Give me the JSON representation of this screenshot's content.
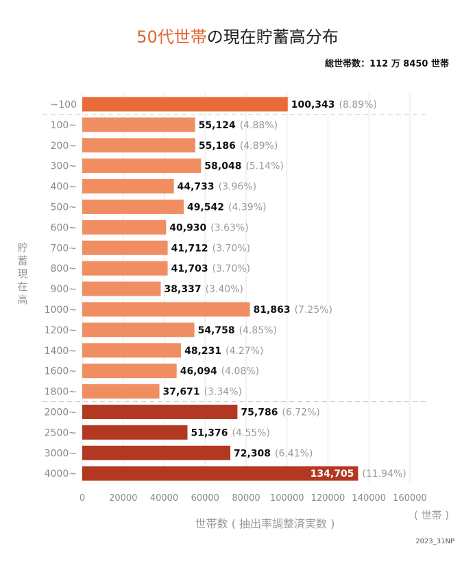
{
  "title": {
    "accent": "50代世帯",
    "rest": "の現在貯蓄高分布"
  },
  "total_households": "総世帯数：112 万 8450 世帯",
  "y_axis_label": [
    "貯",
    "蓄",
    "現",
    "在",
    "高"
  ],
  "x_axis_title": "世帯数 ( 抽出率調整済実数 )",
  "x_unit": "( 世帯 )",
  "credit": "2023_31NP",
  "colors": {
    "top": "#e96c38",
    "middle": "#f08e62",
    "bottom": "#b33821",
    "value_text": "#111111",
    "pct_text": "#999999",
    "axis_text": "#888888",
    "title_accent": "#e0652e"
  },
  "chart_data": {
    "type": "bar",
    "orientation": "horizontal",
    "title": "50代世帯の現在貯蓄高分布",
    "xlabel": "世帯数 ( 抽出率調整済実数 )",
    "ylabel": "貯蓄現在高",
    "xlim": [
      0,
      160000
    ],
    "xticks": [
      "0",
      "20000",
      "40000",
      "60000",
      "80000",
      "100000",
      "120000",
      "140000",
      "160000"
    ],
    "categories": [
      "~100",
      "100~",
      "200~",
      "300~",
      "400~",
      "500~",
      "600~",
      "700~",
      "800~",
      "900~",
      "1000~",
      "1200~",
      "1400~",
      "1600~",
      "1800~",
      "2000~",
      "2500~",
      "3000~",
      "4000~"
    ],
    "values": [
      100343,
      55124,
      55186,
      58048,
      44733,
      49542,
      40930,
      41712,
      41703,
      38337,
      81863,
      54758,
      48231,
      46094,
      37671,
      75786,
      51376,
      72308,
      134705
    ],
    "value_labels": [
      "100,343",
      "55,124",
      "55,186",
      "58,048",
      "44,733",
      "49,542",
      "40,930",
      "41,712",
      "41,703",
      "38,337",
      "81,863",
      "54,758",
      "48,231",
      "46,094",
      "37,671",
      "75,786",
      "51,376",
      "72,308",
      "134,705"
    ],
    "percent_labels": [
      "(8.89%)",
      "(4.88%)",
      "(4.89%)",
      "(5.14%)",
      "(3.96%)",
      "(4.39%)",
      "(3.63%)",
      "(3.70%)",
      "(3.70%)",
      "(3.40%)",
      "(7.25%)",
      "(4.85%)",
      "(4.27%)",
      "(4.08%)",
      "(3.34%)",
      "(6.72%)",
      "(4.55%)",
      "(6.41%)",
      "(11.94%)"
    ],
    "groups": [
      "top",
      "middle",
      "middle",
      "middle",
      "middle",
      "middle",
      "middle",
      "middle",
      "middle",
      "middle",
      "middle",
      "middle",
      "middle",
      "middle",
      "middle",
      "bottom",
      "bottom",
      "bottom",
      "bottom"
    ]
  }
}
